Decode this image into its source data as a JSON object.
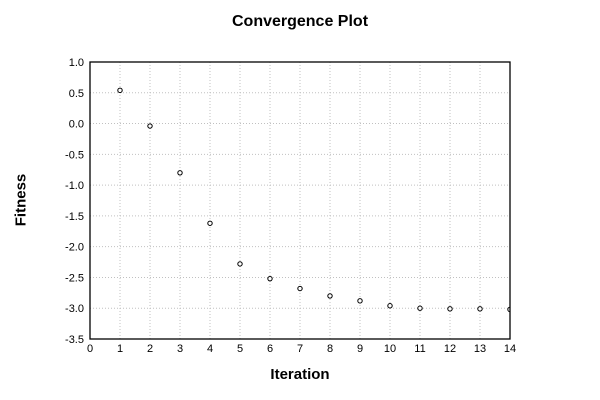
{
  "figure": {
    "background": "#ffffff"
  },
  "chart_data": {
    "type": "scatter",
    "title": "Convergence Plot",
    "xlabel": "Iteration",
    "ylabel": "Fitness",
    "series": [
      {
        "name": "fitness",
        "x": [
          1,
          2,
          3,
          4,
          5,
          6,
          7,
          8,
          9,
          10,
          11,
          12,
          13,
          14
        ],
        "y": [
          0.54,
          -0.04,
          -0.8,
          -1.62,
          -2.28,
          -2.52,
          -2.68,
          -2.8,
          -2.88,
          -2.96,
          -3.0,
          -3.01,
          -3.01,
          -3.02
        ]
      }
    ],
    "xlim": [
      0,
      14
    ],
    "ylim": [
      -3.5,
      1.0
    ],
    "xticks": [
      0,
      1,
      2,
      3,
      4,
      5,
      6,
      7,
      8,
      9,
      10,
      11,
      12,
      13,
      14
    ],
    "xtick_labels": [
      "0",
      "1",
      "2",
      "3",
      "4",
      "5",
      "6",
      "7",
      "8",
      "9",
      "10",
      "11",
      "12",
      "13",
      "14"
    ],
    "yticks": [
      1.0,
      0.5,
      0.0,
      -0.5,
      -1.0,
      -1.5,
      -2.0,
      -2.5,
      -3.0,
      -3.5
    ],
    "ytick_labels": [
      "1.0",
      "0.5",
      "0.0",
      "-0.5",
      "-1.0",
      "-1.5",
      "-2.0",
      "-2.5",
      "-3.0",
      "-3.5"
    ],
    "grid": "dotted",
    "legend": "none",
    "marker": {
      "shape": "open-circle",
      "edge_color": "#000000",
      "fill": "#ffffff",
      "radius": 2.2
    },
    "colors": {
      "axis_box": "#000000",
      "grid": "#c0c0c0",
      "text": "#000000",
      "background": "#ffffff"
    }
  }
}
